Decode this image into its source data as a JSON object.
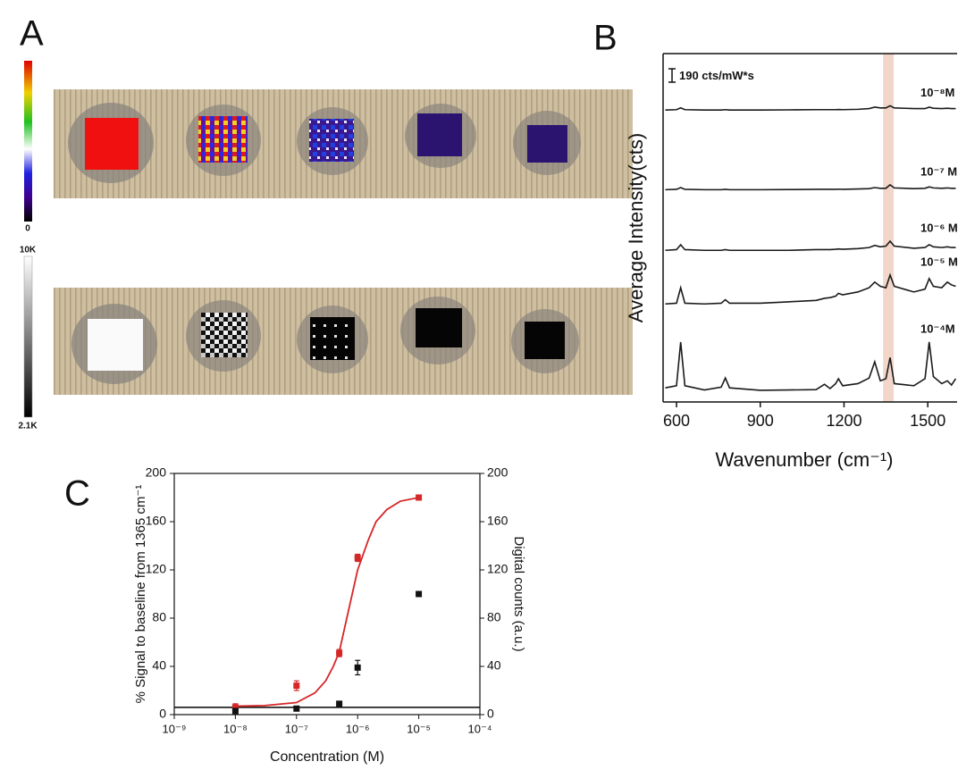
{
  "panel_a": {
    "panel_label": "A",
    "colorbar_top": {
      "min_label": "0"
    },
    "colorbar_bottom": {
      "max_label": "10K",
      "min_label": "2.1K"
    }
  },
  "chart_data": [
    {
      "type": "line",
      "panel_label": "B",
      "xlabel": "Wavenumber (cm⁻¹)",
      "ylabel": "Average Intensity(cts)",
      "xlim": [
        552,
        1605
      ],
      "ylim": [
        0,
        4940
      ],
      "xticks": [
        600,
        900,
        1200,
        1500
      ],
      "highlight": [
        1340,
        1378
      ],
      "scale_bar": {
        "value": 190,
        "label": "190 cts/mW*s"
      },
      "x": [
        560,
        600,
        615,
        630,
        700,
        760,
        775,
        790,
        900,
        1000,
        1100,
        1130,
        1150,
        1170,
        1180,
        1195,
        1250,
        1290,
        1310,
        1330,
        1350,
        1365,
        1380,
        1450,
        1490,
        1505,
        1520,
        1550,
        1570,
        1585,
        1600
      ],
      "series": [
        {
          "name": "10⁻⁸M",
          "color": "#1a1a1a",
          "values": [
            4140,
            4145,
            4170,
            4145,
            4140,
            4140,
            4145,
            4140,
            4140,
            4142,
            4145,
            4145,
            4145,
            4145,
            4148,
            4145,
            4150,
            4160,
            4180,
            4170,
            4170,
            4200,
            4170,
            4160,
            4160,
            4180,
            4165,
            4160,
            4165,
            4160,
            4160
          ]
        },
        {
          "name": "10⁻⁷ M",
          "color": "#1a1a1a",
          "values": [
            3010,
            3015,
            3040,
            3015,
            3010,
            3010,
            3015,
            3010,
            3010,
            3012,
            3015,
            3015,
            3015,
            3015,
            3018,
            3015,
            3020,
            3025,
            3040,
            3030,
            3030,
            3080,
            3035,
            3025,
            3030,
            3050,
            3035,
            3030,
            3035,
            3030,
            3030
          ]
        },
        {
          "name": "10⁻⁶ M",
          "color": "#1a1a1a",
          "values": [
            2150,
            2160,
            2230,
            2160,
            2150,
            2150,
            2160,
            2150,
            2150,
            2150,
            2160,
            2160,
            2160,
            2165,
            2170,
            2165,
            2175,
            2190,
            2220,
            2200,
            2210,
            2280,
            2210,
            2180,
            2190,
            2230,
            2200,
            2190,
            2200,
            2190,
            2190
          ]
        },
        {
          "name": "10⁻⁵ M",
          "color": "#1a1a1a",
          "values": [
            1390,
            1400,
            1620,
            1400,
            1390,
            1400,
            1450,
            1400,
            1400,
            1420,
            1440,
            1470,
            1480,
            1500,
            1540,
            1520,
            1560,
            1620,
            1700,
            1640,
            1620,
            1800,
            1640,
            1560,
            1600,
            1750,
            1640,
            1620,
            1700,
            1660,
            1640
          ]
        },
        {
          "name": "10⁻⁴M",
          "color": "#1a1a1a",
          "values": [
            200,
            230,
            850,
            230,
            170,
            210,
            340,
            200,
            165,
            170,
            175,
            250,
            190,
            260,
            330,
            230,
            260,
            340,
            570,
            300,
            330,
            630,
            260,
            230,
            330,
            850,
            360,
            260,
            300,
            240,
            330
          ]
        }
      ]
    },
    {
      "type": "scatter",
      "panel_label": "C",
      "xlabel": "Concentration (M)",
      "ylabel": "% Signal to baseline from 1365 cm⁻¹",
      "y2label": "Digital counts (a.u.)",
      "xscale": "log",
      "xlim": [
        1e-09,
        0.0001
      ],
      "xticks": [
        {
          "value": 1e-09,
          "label": "10⁻⁹"
        },
        {
          "value": 1e-08,
          "label": "10⁻⁸"
        },
        {
          "value": 1e-07,
          "label": "10⁻⁷"
        },
        {
          "value": 1e-06,
          "label": "10⁻⁶"
        },
        {
          "value": 1e-05,
          "label": "10⁻⁵"
        },
        {
          "value": 0.0001,
          "label": "10⁻⁴"
        }
      ],
      "ylim": [
        0,
        200
      ],
      "yticks": [
        0,
        40,
        80,
        120,
        160,
        200
      ],
      "y2lim": [
        0,
        200
      ],
      "y2ticks": [
        0,
        40,
        80,
        120,
        160,
        200
      ],
      "reference_line": 6,
      "reference_color": "#000000",
      "series": [
        {
          "color": "#d62728",
          "x": [
            1e-08,
            1e-07,
            5e-07,
            1e-06,
            1e-05
          ],
          "values": [
            6,
            24,
            51,
            130,
            180
          ],
          "errors": [
            3,
            4,
            3,
            3,
            1
          ]
        },
        {
          "color": "#111111",
          "axis": "y2",
          "x": [
            1e-08,
            1e-07,
            5e-07,
            1e-06,
            1e-05
          ],
          "values": [
            3,
            5,
            9,
            39,
            100
          ],
          "errors": [
            null,
            null,
            null,
            6,
            null
          ]
        }
      ],
      "fit": {
        "color": "#d62728",
        "x": [
          1e-08,
          3e-08,
          1e-07,
          2e-07,
          3e-07,
          4e-07,
          5e-07,
          7e-07,
          1e-06,
          1.5e-06,
          2e-06,
          3e-06,
          5e-06,
          1e-05
        ],
        "values": [
          7,
          7.5,
          10,
          18,
          28,
          40,
          52,
          85,
          120,
          145,
          160,
          170,
          177,
          180
        ]
      }
    }
  ]
}
